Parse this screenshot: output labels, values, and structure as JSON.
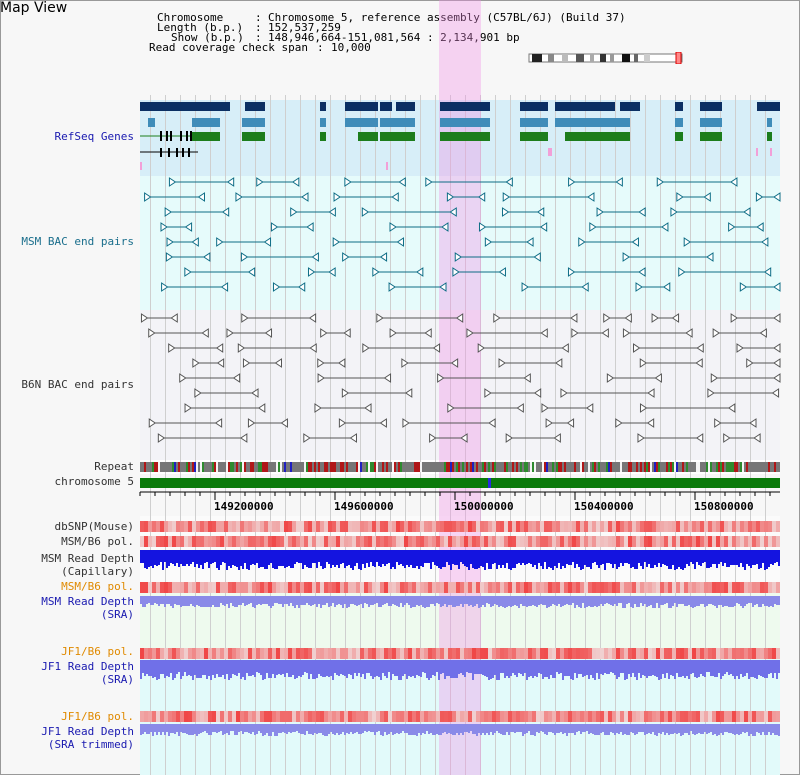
{
  "app": {
    "title": "Map View"
  },
  "header": {
    "chromosome_key": "Chromosome",
    "chromosome_val": "Chromosome 5, reference assembly (C57BL/6J) (Build 37)",
    "length_key": "Length (b.p.)",
    "length_val": "152,537,259",
    "show_key": "Show (b.p.)",
    "show_val": "148,946,664-151,081,564 : 2,134,901 bp",
    "coverage_key": "Read coverage check span",
    "coverage_val": "10,000"
  },
  "tracks": {
    "refseq": "RefSeq Genes",
    "msm_bac": "MSM BAC end pairs",
    "b6n_bac": "B6N BAC end pairs",
    "repeat": "Repeat",
    "chromosome": "chromosome 5",
    "dbsnp": "dbSNP(Mouse)",
    "msm_b6_pol_1": "MSM/B6 pol.",
    "msm_read_depth_cap_1": "MSM Read Depth",
    "msm_read_depth_cap_2": "(Capillary)",
    "msm_b6_pol_2": "MSM/B6 pol.",
    "msm_read_depth_sra_1": "MSM Read Depth",
    "msm_read_depth_sra_2": "(SRA)",
    "jf1_b6_pol_1": "JF1/B6 pol.",
    "jf1_read_depth_sra_1": "JF1 Read Depth",
    "jf1_read_depth_sra_2": "(SRA)",
    "jf1_b6_pol_2": "JF1/B6 pol.",
    "jf1_read_depth_trim_1": "JF1 Read Depth",
    "jf1_read_depth_trim_2": "(SRA trimmed)"
  },
  "axis": {
    "ticks": [
      "149200000",
      "149600000",
      "150000000",
      "150400000",
      "150800000"
    ]
  },
  "colors": {
    "refseq_bg": "#d7eef8",
    "msm_bg": "#e6fbfb",
    "b6n_bg": "#f3f3f7",
    "chrom_green": "#0a7a0a",
    "gene_navy": "#0b2f63",
    "gene_blue": "#3f8cb9",
    "gene_green": "#1c7d1c",
    "highlight": "#f4b8ee"
  }
}
